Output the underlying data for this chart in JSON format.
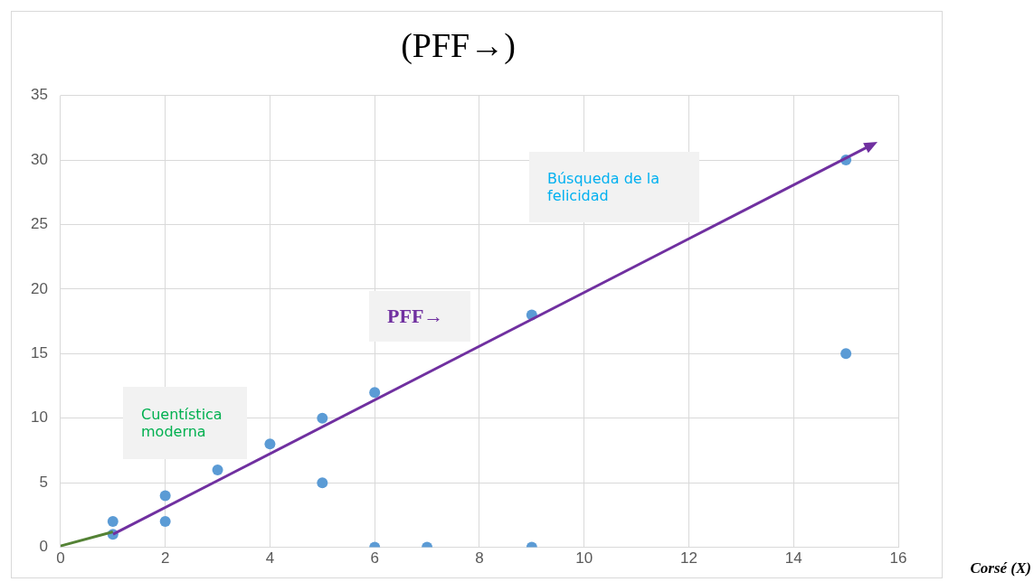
{
  "chart_data": {
    "type": "scatter",
    "title": "(PFF→)",
    "xlabel": "Corsé (X)",
    "xlim": [
      0,
      16
    ],
    "xticks": [
      0,
      2,
      4,
      6,
      8,
      10,
      12,
      14,
      16
    ],
    "ylim": [
      0,
      35
    ],
    "yticks": [
      0,
      5,
      10,
      15,
      20,
      25,
      30,
      35
    ],
    "grid": true,
    "legend": false,
    "marker": "circle",
    "series": [
      {
        "type": "scatter",
        "color": "#5b9bd5",
        "x": [
          1,
          1,
          2,
          2,
          3,
          4,
          5,
          5,
          6,
          6,
          7,
          9,
          9,
          15,
          15
        ],
        "values": [
          2,
          1,
          4,
          2,
          6,
          8,
          10,
          5,
          12,
          0,
          0,
          18,
          0,
          30,
          15
        ]
      },
      {
        "type": "line",
        "color": "#548235",
        "marker": "none",
        "x": [
          0,
          1
        ],
        "values": [
          0.1,
          1.2
        ]
      }
    ],
    "annotations": [
      "Búsqueda de la felicidad",
      "PFF→",
      "Cuentística moderna"
    ]
  }
}
